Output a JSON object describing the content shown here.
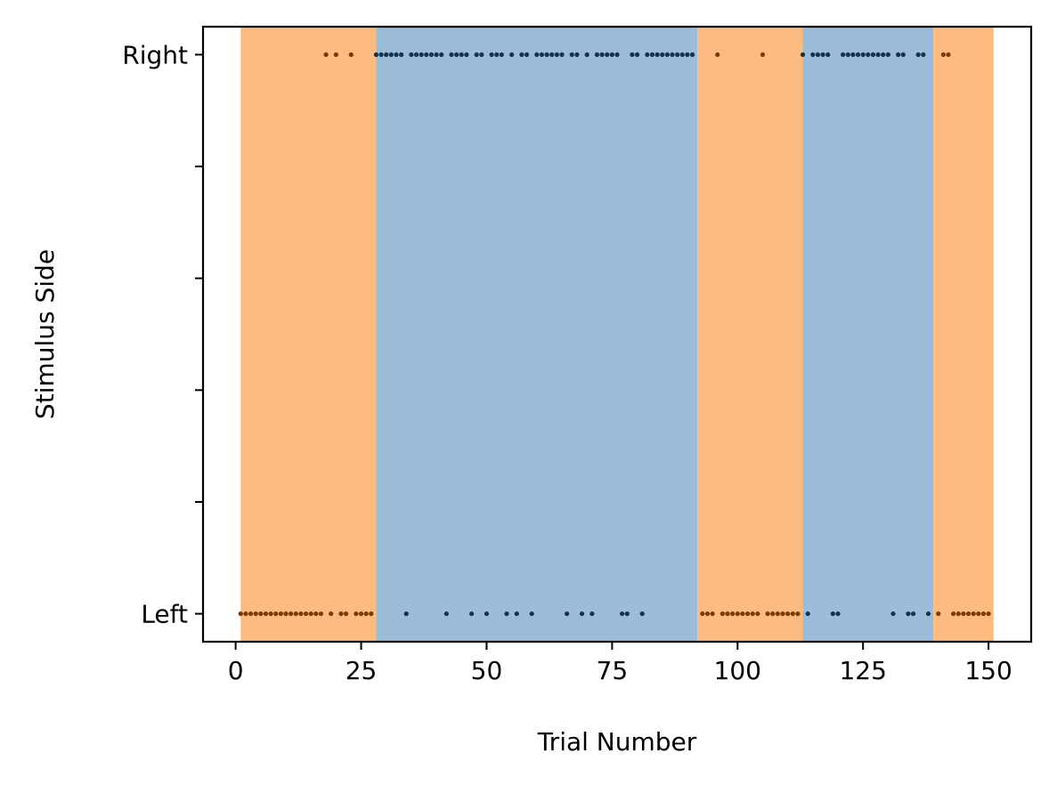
{
  "chart_data": {
    "type": "scatter",
    "xlabel": "Trial Number",
    "ylabel": "Stimulus Side",
    "xlim": [
      -6.5,
      158.5
    ],
    "ylim": [
      -0.05,
      1.05
    ],
    "x_ticks": [
      0,
      25,
      50,
      75,
      100,
      125,
      150
    ],
    "x_tick_labels": [
      "0",
      "25",
      "50",
      "75",
      "100",
      "125",
      "150"
    ],
    "y_ticks": [
      0,
      0.2,
      0.4,
      0.6,
      0.8,
      1
    ],
    "y_tick_labels": [
      "Left",
      "",
      "",
      "",
      "",
      "Right"
    ],
    "grid": false,
    "legend": "none",
    "colors": {
      "orange_block": "#fdbb80",
      "blue_block": "#9bbdda",
      "orange_points": "#7a3b00",
      "blue_points": "#14324a"
    },
    "blocks": [
      {
        "start": 1,
        "end": 28,
        "color": "orange"
      },
      {
        "start": 28,
        "end": 92,
        "color": "blue"
      },
      {
        "start": 92,
        "end": 113,
        "color": "orange"
      },
      {
        "start": 113,
        "end": 139,
        "color": "blue"
      },
      {
        "start": 139,
        "end": 151,
        "color": "orange"
      }
    ],
    "series": [
      {
        "color_key": "orange",
        "points": [
          [
            1,
            0
          ],
          [
            2,
            0
          ],
          [
            3,
            0
          ],
          [
            4,
            0
          ],
          [
            5,
            0
          ],
          [
            6,
            0
          ],
          [
            7,
            0
          ],
          [
            8,
            0
          ],
          [
            9,
            0
          ],
          [
            10,
            0
          ],
          [
            11,
            0
          ],
          [
            12,
            0
          ],
          [
            13,
            0
          ],
          [
            14,
            0
          ],
          [
            15,
            0
          ],
          [
            16,
            0
          ],
          [
            17,
            0
          ],
          [
            18,
            1
          ],
          [
            19,
            0
          ],
          [
            20,
            1
          ],
          [
            21,
            0
          ],
          [
            22,
            0
          ],
          [
            23,
            1
          ],
          [
            24,
            0
          ],
          [
            25,
            0
          ],
          [
            26,
            0
          ],
          [
            27,
            0
          ],
          [
            93,
            0
          ],
          [
            94,
            0
          ],
          [
            95,
            0
          ],
          [
            96,
            1
          ],
          [
            97,
            0
          ],
          [
            98,
            0
          ],
          [
            99,
            0
          ],
          [
            100,
            0
          ],
          [
            101,
            0
          ],
          [
            102,
            0
          ],
          [
            103,
            0
          ],
          [
            104,
            0
          ],
          [
            105,
            1
          ],
          [
            106,
            0
          ],
          [
            107,
            0
          ],
          [
            108,
            0
          ],
          [
            109,
            0
          ],
          [
            110,
            0
          ],
          [
            111,
            0
          ],
          [
            112,
            0
          ],
          [
            140,
            0
          ],
          [
            141,
            1
          ],
          [
            142,
            1
          ],
          [
            143,
            0
          ],
          [
            144,
            0
          ],
          [
            145,
            0
          ],
          [
            146,
            0
          ],
          [
            147,
            0
          ],
          [
            148,
            0
          ],
          [
            149,
            0
          ],
          [
            150,
            0
          ]
        ]
      },
      {
        "color_key": "blue",
        "points": [
          [
            28,
            1
          ],
          [
            29,
            1
          ],
          [
            30,
            1
          ],
          [
            31,
            1
          ],
          [
            32,
            1
          ],
          [
            33,
            1
          ],
          [
            34,
            0
          ],
          [
            35,
            1
          ],
          [
            36,
            1
          ],
          [
            37,
            1
          ],
          [
            38,
            1
          ],
          [
            39,
            1
          ],
          [
            40,
            1
          ],
          [
            41,
            1
          ],
          [
            42,
            0
          ],
          [
            43,
            1
          ],
          [
            44,
            1
          ],
          [
            45,
            1
          ],
          [
            46,
            1
          ],
          [
            47,
            0
          ],
          [
            48,
            1
          ],
          [
            49,
            1
          ],
          [
            50,
            0
          ],
          [
            51,
            1
          ],
          [
            52,
            1
          ],
          [
            53,
            1
          ],
          [
            54,
            0
          ],
          [
            55,
            1
          ],
          [
            56,
            0
          ],
          [
            57,
            1
          ],
          [
            58,
            1
          ],
          [
            59,
            0
          ],
          [
            60,
            1
          ],
          [
            61,
            1
          ],
          [
            62,
            1
          ],
          [
            63,
            1
          ],
          [
            64,
            1
          ],
          [
            65,
            1
          ],
          [
            66,
            0
          ],
          [
            67,
            1
          ],
          [
            68,
            1
          ],
          [
            69,
            0
          ],
          [
            70,
            1
          ],
          [
            71,
            0
          ],
          [
            72,
            1
          ],
          [
            73,
            1
          ],
          [
            74,
            1
          ],
          [
            75,
            1
          ],
          [
            76,
            1
          ],
          [
            77,
            0
          ],
          [
            78,
            0
          ],
          [
            79,
            1
          ],
          [
            80,
            1
          ],
          [
            81,
            0
          ],
          [
            82,
            1
          ],
          [
            83,
            1
          ],
          [
            84,
            1
          ],
          [
            85,
            1
          ],
          [
            86,
            1
          ],
          [
            87,
            1
          ],
          [
            88,
            1
          ],
          [
            89,
            1
          ],
          [
            90,
            1
          ],
          [
            91,
            1
          ],
          [
            113,
            1
          ],
          [
            114,
            0
          ],
          [
            115,
            1
          ],
          [
            116,
            1
          ],
          [
            117,
            1
          ],
          [
            118,
            1
          ],
          [
            119,
            0
          ],
          [
            120,
            0
          ],
          [
            121,
            1
          ],
          [
            122,
            1
          ],
          [
            123,
            1
          ],
          [
            124,
            1
          ],
          [
            125,
            1
          ],
          [
            126,
            1
          ],
          [
            127,
            1
          ],
          [
            128,
            1
          ],
          [
            129,
            1
          ],
          [
            130,
            1
          ],
          [
            131,
            0
          ],
          [
            132,
            1
          ],
          [
            133,
            1
          ],
          [
            134,
            0
          ],
          [
            135,
            0
          ],
          [
            136,
            1
          ],
          [
            137,
            1
          ],
          [
            138,
            0
          ]
        ]
      }
    ]
  }
}
